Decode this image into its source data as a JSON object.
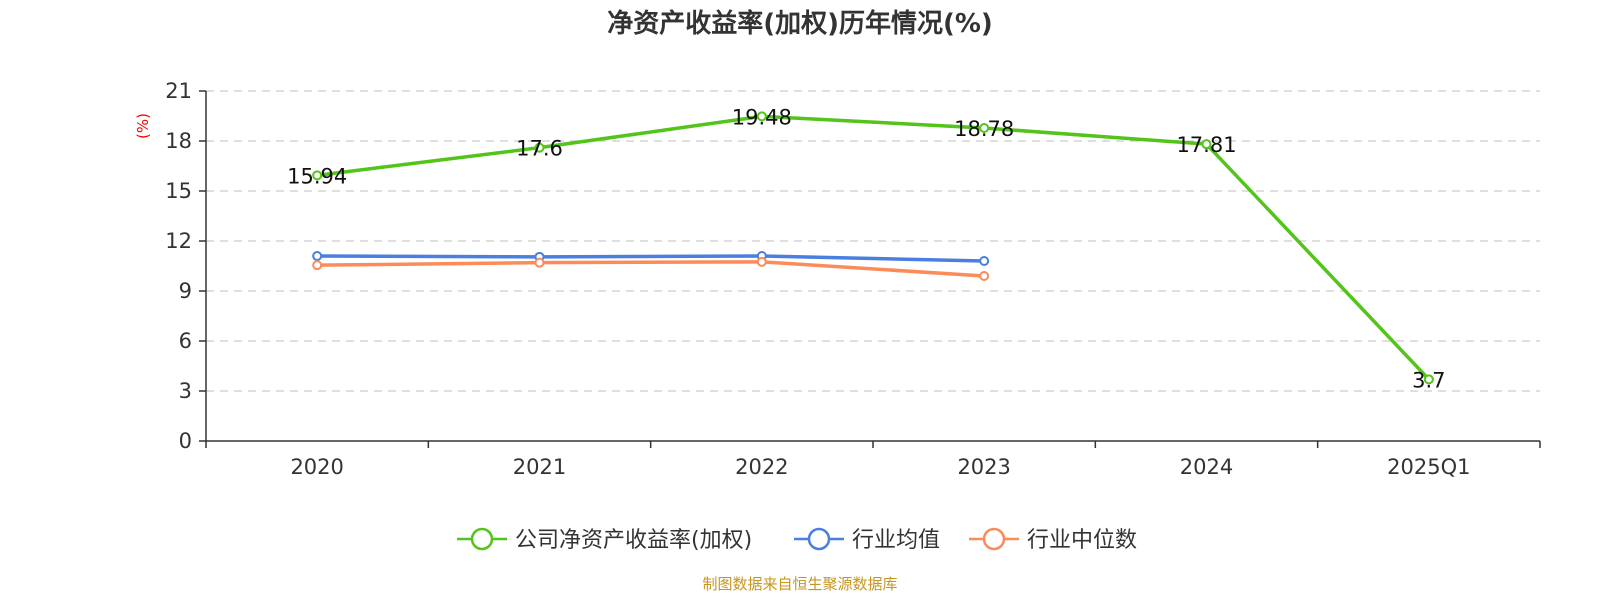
{
  "chart_data": {
    "type": "line",
    "title": "净资产收益率(加权)历年情况(%)",
    "ylabel": "(%)",
    "xlabel": "",
    "categories": [
      "2020",
      "2021",
      "2022",
      "2023",
      "2024",
      "2025Q1"
    ],
    "ylim": [
      0,
      21
    ],
    "yticks": [
      0,
      3,
      6,
      9,
      12,
      15,
      18,
      21
    ],
    "grid": true,
    "legend_position": "bottom",
    "series": [
      {
        "name": "公司净资产收益率(加权)",
        "color": "#52c41a",
        "values": [
          15.94,
          17.6,
          19.48,
          18.78,
          17.81,
          3.7
        ],
        "labels": [
          "15.94",
          "17.6",
          "19.48",
          "18.78",
          "17.81",
          "3.7"
        ]
      },
      {
        "name": "行业均值",
        "color": "#4a7fe0",
        "values": [
          11.1,
          11.05,
          11.1,
          10.8,
          null,
          null
        ]
      },
      {
        "name": "行业中位数",
        "color": "#fb8c5a",
        "values": [
          10.55,
          10.7,
          10.75,
          9.9,
          null,
          null
        ]
      }
    ]
  },
  "colors": {
    "unit": "#ff0000",
    "source": "#c8961e",
    "axis": "#333333",
    "grid": "#cccccc"
  },
  "source": "制图数据来自恒生聚源数据库"
}
